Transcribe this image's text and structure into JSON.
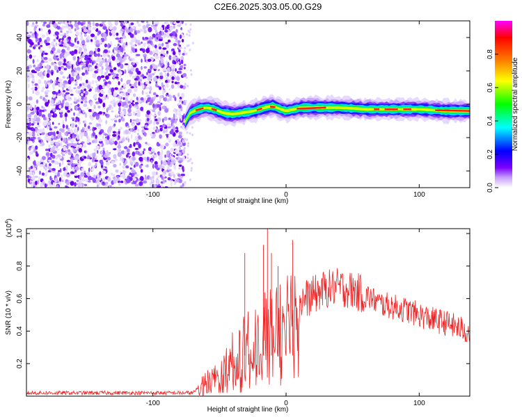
{
  "title": "C2E6.2025.303.05.00.G29",
  "chart_data": [
    {
      "type": "heatmap",
      "name": "spectrogram",
      "xlabel": "Height of straight line (km)",
      "ylabel": "Frequency (Hz)",
      "xlim": [
        -195,
        138
      ],
      "ylim": [
        -50,
        50
      ],
      "x_ticks": [
        -100,
        0,
        100
      ],
      "x_tick_labels": [
        "-100",
        "0",
        "100"
      ],
      "y_ticks": [
        -40,
        -20,
        0,
        20,
        40
      ],
      "y_tick_labels": [
        "-40",
        "-20",
        "0",
        "20",
        "40"
      ],
      "noise_region_x": [
        -195,
        -76
      ],
      "signal_track": {
        "x": [
          -76,
          -72,
          -66,
          -60,
          -54,
          -48,
          -40,
          -32,
          -24,
          -16,
          -10,
          -4,
          0,
          6,
          12,
          20,
          40,
          60,
          80,
          100,
          120,
          138
        ],
        "frequency": [
          -11,
          -5,
          -3,
          -2,
          -3,
          -5,
          -6,
          -5,
          -4,
          -2,
          -1,
          -3,
          -4,
          -3,
          -2,
          -2,
          -2,
          -3,
          -3,
          -3,
          -4,
          -4
        ]
      },
      "colorbar": {
        "label": "Normalized spectral amplitude",
        "range": [
          0,
          1
        ],
        "ticks": [
          0.0,
          0.2,
          0.4,
          0.6,
          0.8
        ],
        "tick_labels": [
          "0.0",
          "0.2",
          "0.4",
          "0.6",
          "0.8"
        ],
        "colors": [
          "#ffffff",
          "#7b00ff",
          "#0000ff",
          "#00ffff",
          "#00ff00",
          "#ffff00",
          "#ff8000",
          "#ff0000",
          "#ff00ff"
        ]
      }
    },
    {
      "type": "line",
      "name": "snr",
      "xlabel": "Height of straight line (km)",
      "ylabel": "SNR (10 * v/v)",
      "scale_label": "(x10",
      "scale_exponent": "4",
      "scale_close": ")",
      "xlim": [
        -195,
        138
      ],
      "ylim": [
        0,
        1.03
      ],
      "x_ticks": [
        -100,
        0,
        100
      ],
      "x_tick_labels": [
        "-100",
        "0",
        "100"
      ],
      "y_ticks": [
        0.2,
        0.4,
        0.6,
        0.8,
        1.0
      ],
      "y_tick_labels": [
        "0.2",
        "0.4",
        "0.6",
        "0.8",
        "1.0"
      ],
      "color": "#ee2222",
      "series": [
        {
          "name": "SNR",
          "x": [
            -195,
            -150,
            -100,
            -70,
            -64,
            -60,
            -55,
            -50,
            -45,
            -40,
            -35,
            -30,
            -25,
            -20,
            -15,
            -10,
            -5,
            0,
            5,
            10,
            20,
            30,
            40,
            50,
            60,
            70,
            80,
            90,
            100,
            110,
            120,
            130,
            138
          ],
          "y": [
            0.02,
            0.02,
            0.02,
            0.02,
            0.06,
            0.08,
            0.12,
            0.15,
            0.2,
            0.24,
            0.28,
            0.32,
            0.34,
            0.37,
            0.42,
            0.46,
            0.5,
            0.53,
            0.56,
            0.58,
            0.62,
            0.66,
            0.67,
            0.65,
            0.62,
            0.57,
            0.55,
            0.53,
            0.5,
            0.47,
            0.45,
            0.42,
            0.39
          ]
        }
      ],
      "spikes": {
        "x": [
          -31,
          -17,
          -14,
          -11,
          -6,
          5
        ],
        "y": [
          0.88,
          0.93,
          1.03,
          0.88,
          0.8,
          0.96
        ]
      }
    }
  ]
}
